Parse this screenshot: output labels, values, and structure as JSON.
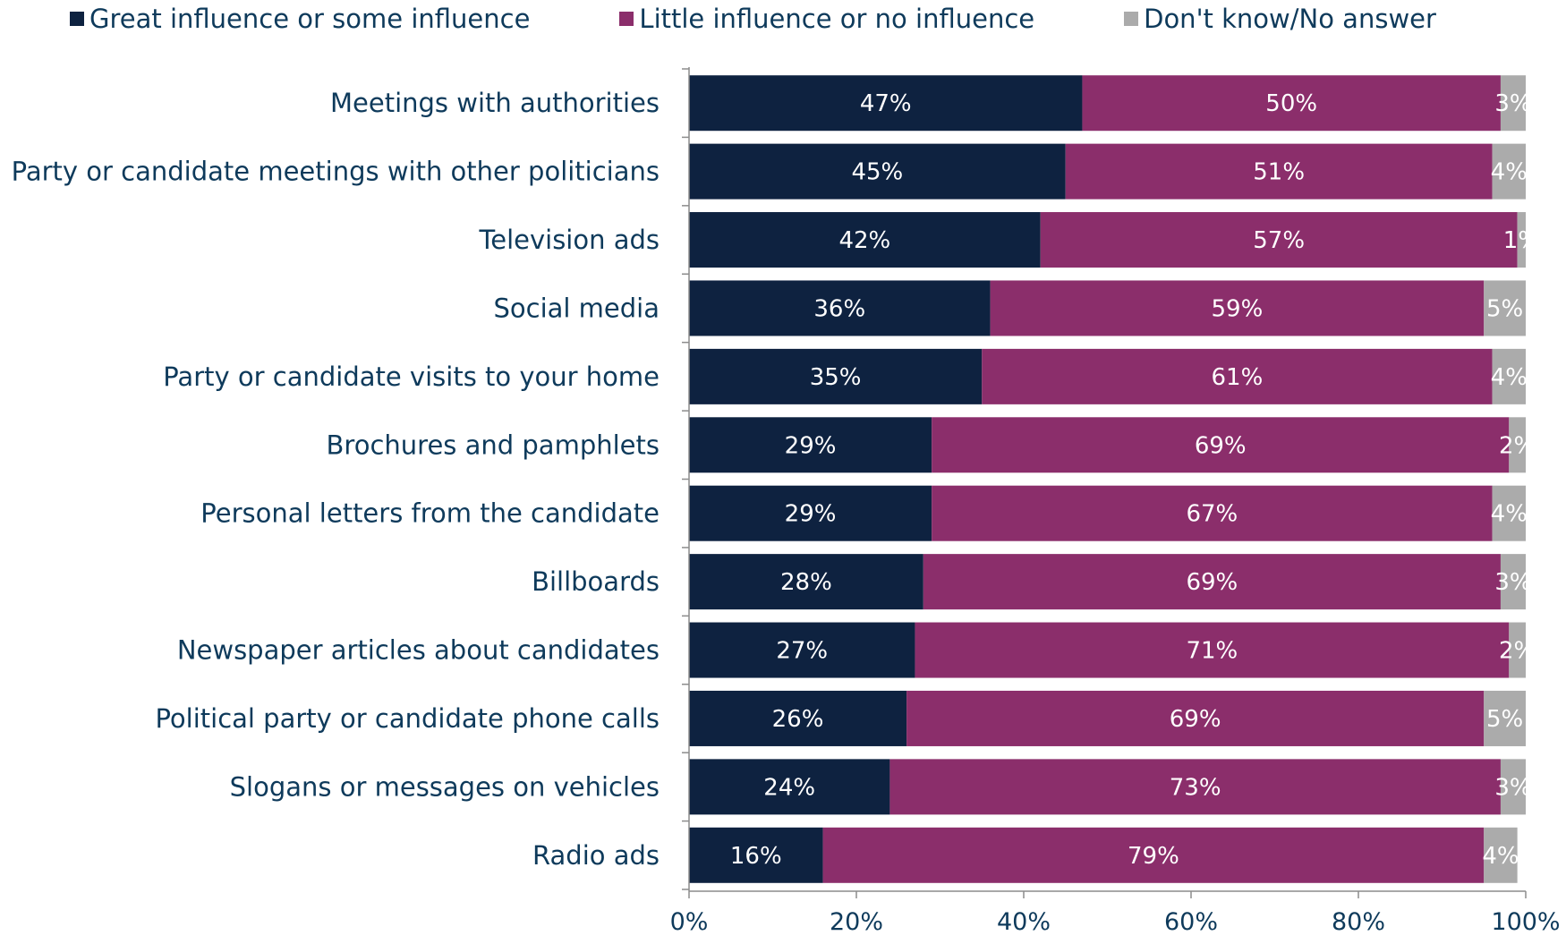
{
  "chart_data": {
    "type": "bar",
    "orientation": "horizontal",
    "stacked": "percent",
    "categories": [
      "Meetings with authorities",
      "Party or candidate meetings with other politicians",
      "Television ads",
      "Social media",
      "Party or candidate visits to your home",
      "Brochures and pamphlets",
      "Personal letters from the candidate",
      "Billboards",
      "Newspaper articles about candidates",
      "Political party or candidate phone calls",
      "Slogans or messages on vehicles",
      "Radio ads"
    ],
    "series": [
      {
        "name": "Great influence or some influence",
        "color": "#0E2240",
        "values": [
          47,
          45,
          42,
          36,
          35,
          29,
          29,
          28,
          27,
          26,
          24,
          16
        ]
      },
      {
        "name": "Little influence or no influence",
        "color": "#8B2E6B",
        "values": [
          50,
          51,
          57,
          59,
          61,
          69,
          67,
          69,
          71,
          69,
          73,
          79
        ]
      },
      {
        "name": "Don't know/No answer",
        "color": "#ABABAB",
        "values": [
          3,
          4,
          1,
          5,
          4,
          2,
          4,
          3,
          2,
          5,
          3,
          4
        ]
      }
    ],
    "xlim": [
      0,
      100
    ],
    "xticks": [
      "0%",
      "20%",
      "40%",
      "60%",
      "80%",
      "100%"
    ],
    "legend_position": "top",
    "grid": false,
    "value_suffix": "%"
  }
}
